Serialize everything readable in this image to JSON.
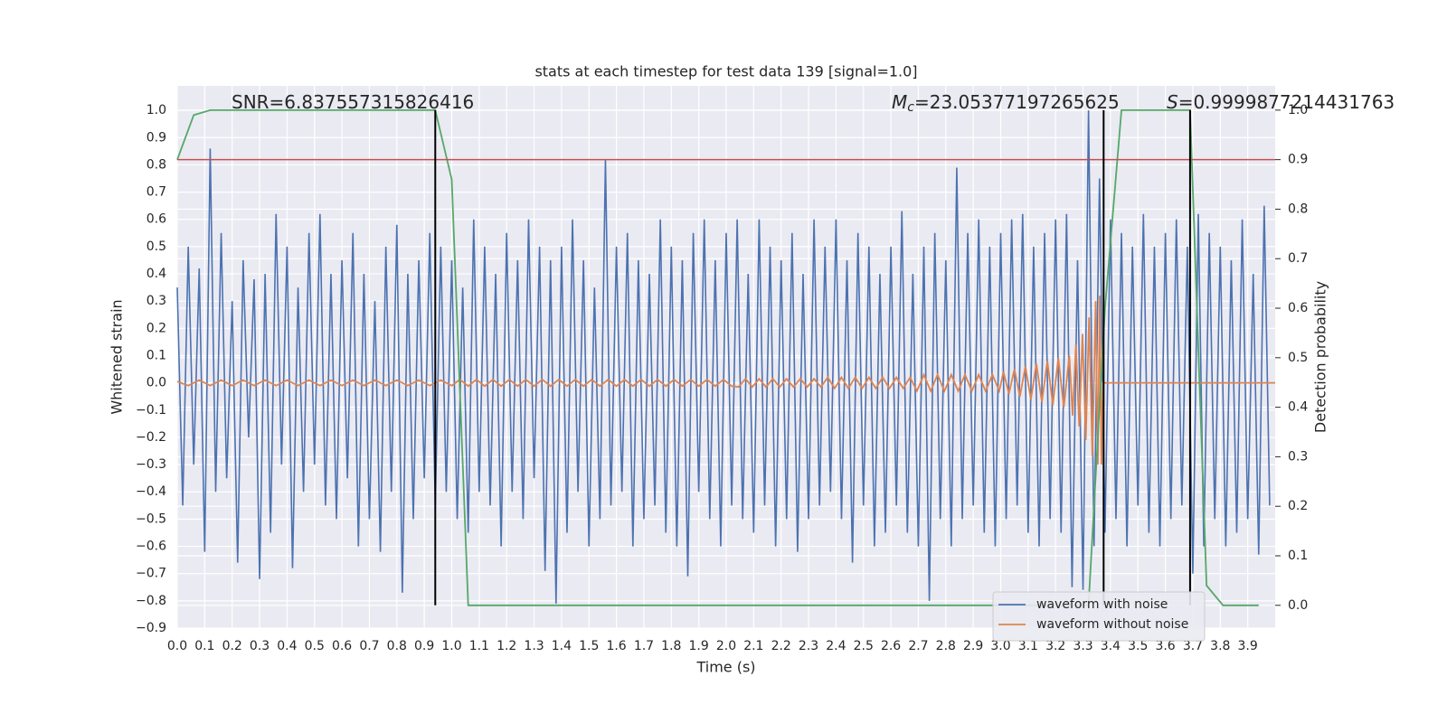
{
  "chart_data": {
    "type": "line",
    "title": "stats at each timestep for test data 139 [signal=1.0]",
    "xlabel": "Time (s)",
    "ylabel": "Whitened strain",
    "y2label": "Detection probability",
    "xlim": [
      0,
      4.0
    ],
    "ylim": [
      -0.9,
      1.09
    ],
    "y2lim": [
      -0.046,
      1.049
    ],
    "grid": true,
    "legend": "lower right",
    "xticks": [
      {
        "value": 0,
        "label": "0.0"
      },
      {
        "value": 0.1,
        "label": "0.1"
      },
      {
        "value": 0.2,
        "label": "0.2"
      },
      {
        "value": 0.3,
        "label": "0.3"
      },
      {
        "value": 0.4,
        "label": "0.4"
      },
      {
        "value": 0.5,
        "label": "0.5"
      },
      {
        "value": 0.6,
        "label": "0.6"
      },
      {
        "value": 0.7,
        "label": "0.7"
      },
      {
        "value": 0.8,
        "label": "0.8"
      },
      {
        "value": 0.9,
        "label": "0.9"
      },
      {
        "value": 1,
        "label": "1.0"
      },
      {
        "value": 1.1,
        "label": "1.1"
      },
      {
        "value": 1.2,
        "label": "1.2"
      },
      {
        "value": 1.3,
        "label": "1.3"
      },
      {
        "value": 1.4,
        "label": "1.4"
      },
      {
        "value": 1.5,
        "label": "1.5"
      },
      {
        "value": 1.6,
        "label": "1.6"
      },
      {
        "value": 1.7,
        "label": "1.7"
      },
      {
        "value": 1.8,
        "label": "1.8"
      },
      {
        "value": 1.9,
        "label": "1.9"
      },
      {
        "value": 2,
        "label": "2.0"
      },
      {
        "value": 2.1,
        "label": "2.1"
      },
      {
        "value": 2.2,
        "label": "2.2"
      },
      {
        "value": 2.3,
        "label": "2.3"
      },
      {
        "value": 2.4,
        "label": "2.4"
      },
      {
        "value": 2.5,
        "label": "2.5"
      },
      {
        "value": 2.6,
        "label": "2.6"
      },
      {
        "value": 2.7,
        "label": "2.7"
      },
      {
        "value": 2.8,
        "label": "2.8"
      },
      {
        "value": 2.9,
        "label": "2.9"
      },
      {
        "value": 3,
        "label": "3.0"
      },
      {
        "value": 3.1,
        "label": "3.1"
      },
      {
        "value": 3.2,
        "label": "3.2"
      },
      {
        "value": 3.3,
        "label": "3.3"
      },
      {
        "value": 3.4,
        "label": "3.4"
      },
      {
        "value": 3.5,
        "label": "3.5"
      },
      {
        "value": 3.6,
        "label": "3.6"
      },
      {
        "value": 3.7,
        "label": "3.7"
      },
      {
        "value": 3.8,
        "label": "3.8"
      },
      {
        "value": 3.9,
        "label": "3.9"
      }
    ],
    "yticks": [
      {
        "value": -0.9,
        "label": "−0.9"
      },
      {
        "value": -0.8,
        "label": "−0.8"
      },
      {
        "value": -0.7,
        "label": "−0.7"
      },
      {
        "value": -0.6,
        "label": "−0.6"
      },
      {
        "value": -0.5,
        "label": "−0.5"
      },
      {
        "value": -0.4,
        "label": "−0.4"
      },
      {
        "value": -0.3,
        "label": "−0.3"
      },
      {
        "value": -0.2,
        "label": "−0.2"
      },
      {
        "value": -0.1,
        "label": "−0.1"
      },
      {
        "value": 0,
        "label": "0.0"
      },
      {
        "value": 0.1,
        "label": "0.1"
      },
      {
        "value": 0.2,
        "label": "0.2"
      },
      {
        "value": 0.3,
        "label": "0.3"
      },
      {
        "value": 0.4,
        "label": "0.4"
      },
      {
        "value": 0.5,
        "label": "0.5"
      },
      {
        "value": 0.6,
        "label": "0.6"
      },
      {
        "value": 0.7,
        "label": "0.7"
      },
      {
        "value": 0.8,
        "label": "0.8"
      },
      {
        "value": 0.9,
        "label": "0.9"
      },
      {
        "value": 1,
        "label": "1.0"
      }
    ],
    "y2ticks": [
      {
        "value": 0,
        "label": "0.0"
      },
      {
        "value": 0.1,
        "label": "0.1"
      },
      {
        "value": 0.2,
        "label": "0.2"
      },
      {
        "value": 0.3,
        "label": "0.3"
      },
      {
        "value": 0.4,
        "label": "0.4"
      },
      {
        "value": 0.5,
        "label": "0.5"
      },
      {
        "value": 0.6,
        "label": "0.6"
      },
      {
        "value": 0.7,
        "label": "0.7"
      },
      {
        "value": 0.8,
        "label": "0.8"
      },
      {
        "value": 0.9,
        "label": "0.9"
      },
      {
        "value": 1,
        "label": "1.0"
      }
    ],
    "series": [
      {
        "name": "waveform with noise",
        "color": "#4c72b0",
        "x": [
          0,
          0.02,
          0.04,
          0.06,
          0.08,
          0.1,
          0.12,
          0.14,
          0.16,
          0.18,
          0.2,
          0.22,
          0.24,
          0.26,
          0.28,
          0.3,
          0.32,
          0.34,
          0.36,
          0.38,
          0.4,
          0.42,
          0.44,
          0.46,
          0.48,
          0.5,
          0.52,
          0.54,
          0.56,
          0.58,
          0.6,
          0.62,
          0.64,
          0.66,
          0.68,
          0.7,
          0.72,
          0.74,
          0.76,
          0.78,
          0.8,
          0.82,
          0.84,
          0.86,
          0.88,
          0.9,
          0.92,
          0.94,
          0.96,
          0.98,
          1,
          1.02,
          1.04,
          1.06,
          1.08,
          1.1,
          1.12,
          1.14,
          1.16,
          1.18,
          1.2,
          1.22,
          1.24,
          1.26,
          1.28,
          1.3,
          1.32,
          1.34,
          1.36,
          1.38,
          1.4,
          1.42,
          1.44,
          1.46,
          1.48,
          1.5,
          1.52,
          1.54,
          1.56,
          1.58,
          1.6,
          1.62,
          1.64,
          1.66,
          1.68,
          1.7,
          1.72,
          1.74,
          1.76,
          1.78,
          1.8,
          1.82,
          1.84,
          1.86,
          1.88,
          1.9,
          1.92,
          1.94,
          1.96,
          1.98,
          2,
          2.02,
          2.04,
          2.06,
          2.08,
          2.1,
          2.12,
          2.14,
          2.16,
          2.18,
          2.2,
          2.22,
          2.24,
          2.26,
          2.28,
          2.3,
          2.32,
          2.34,
          2.36,
          2.38,
          2.4,
          2.42,
          2.44,
          2.46,
          2.48,
          2.5,
          2.52,
          2.54,
          2.56,
          2.58,
          2.6,
          2.62,
          2.64,
          2.66,
          2.68,
          2.7,
          2.72,
          2.74,
          2.76,
          2.78,
          2.8,
          2.82,
          2.84,
          2.86,
          2.88,
          2.9,
          2.92,
          2.94,
          2.96,
          2.98,
          3,
          3.02,
          3.04,
          3.06,
          3.08,
          3.1,
          3.12,
          3.14,
          3.16,
          3.18,
          3.2,
          3.22,
          3.24,
          3.26,
          3.28,
          3.3,
          3.32,
          3.34,
          3.36,
          3.38,
          3.4,
          3.42,
          3.44,
          3.46,
          3.48,
          3.5,
          3.52,
          3.54,
          3.56,
          3.58,
          3.6,
          3.62,
          3.64,
          3.66,
          3.68,
          3.7,
          3.72,
          3.74,
          3.76,
          3.78,
          3.8,
          3.82,
          3.84,
          3.86,
          3.88,
          3.9,
          3.92,
          3.94,
          3.96,
          3.98
        ],
        "values": [
          0.35,
          -0.45,
          0.5,
          -0.3,
          0.42,
          -0.62,
          0.86,
          -0.4,
          0.55,
          -0.35,
          0.3,
          -0.66,
          0.45,
          -0.2,
          0.38,
          -0.72,
          0.4,
          -0.55,
          0.62,
          -0.3,
          0.5,
          -0.68,
          0.35,
          -0.4,
          0.55,
          -0.3,
          0.62,
          -0.45,
          0.4,
          -0.5,
          0.45,
          -0.35,
          0.55,
          -0.6,
          0.4,
          -0.5,
          0.3,
          -0.62,
          0.5,
          -0.4,
          0.58,
          -0.77,
          0.4,
          -0.5,
          0.45,
          -0.35,
          0.55,
          -0.45,
          0.5,
          -0.4,
          0.45,
          -0.5,
          0.35,
          -0.55,
          0.6,
          -0.4,
          0.5,
          -0.45,
          0.4,
          -0.6,
          0.55,
          -0.4,
          0.45,
          -0.5,
          0.6,
          -0.35,
          0.5,
          -0.69,
          0.45,
          -0.81,
          0.5,
          -0.55,
          0.6,
          -0.4,
          0.45,
          -0.6,
          0.35,
          -0.5,
          0.82,
          -0.45,
          0.5,
          -0.4,
          0.55,
          -0.6,
          0.45,
          -0.5,
          0.4,
          -0.45,
          0.6,
          -0.55,
          0.5,
          -0.6,
          0.45,
          -0.71,
          0.55,
          -0.4,
          0.6,
          -0.5,
          0.45,
          -0.6,
          0.55,
          -0.45,
          0.6,
          -0.5,
          0.4,
          -0.55,
          0.6,
          -0.45,
          0.5,
          -0.6,
          0.45,
          -0.5,
          0.55,
          -0.62,
          0.4,
          -0.5,
          0.6,
          -0.45,
          0.5,
          -0.4,
          0.6,
          -0.5,
          0.45,
          -0.66,
          0.55,
          -0.45,
          0.5,
          -0.6,
          0.4,
          -0.55,
          0.5,
          -0.45,
          0.63,
          -0.55,
          0.4,
          -0.6,
          0.5,
          -0.8,
          0.55,
          -0.5,
          0.45,
          -0.6,
          0.79,
          -0.5,
          0.55,
          -0.45,
          0.6,
          -0.55,
          0.5,
          -0.6,
          0.55,
          -0.5,
          0.6,
          -0.45,
          0.62,
          -0.55,
          0.5,
          -0.6,
          0.55,
          -0.5,
          0.6,
          -0.55,
          0.62,
          -0.75,
          0.45,
          -0.76,
          1.0,
          -0.6,
          0.75,
          -0.55,
          0.6,
          -0.5,
          0.55,
          -0.6,
          0.5,
          -0.45,
          0.62,
          -0.55,
          0.5,
          -0.6,
          0.55,
          -0.5,
          0.6,
          -0.45,
          0.5,
          -0.7,
          0.62,
          -0.6,
          0.55,
          -0.5,
          0.5,
          -0.6,
          0.45,
          -0.55,
          0.6,
          -0.5,
          0.4,
          -0.63,
          0.65,
          -0.45
        ]
      },
      {
        "name": "waveform without noise",
        "color": "#dd8452",
        "x": [
          0,
          0.04,
          0.08,
          0.12,
          0.16,
          0.2,
          0.24,
          0.28,
          0.32,
          0.36,
          0.4,
          0.44,
          0.48,
          0.52,
          0.56,
          0.6,
          0.64,
          0.68,
          0.72,
          0.76,
          0.8,
          0.84,
          0.88,
          0.92,
          0.96,
          1.0,
          1.03,
          1.06,
          1.09,
          1.12,
          1.15,
          1.18,
          1.21,
          1.24,
          1.27,
          1.3,
          1.33,
          1.36,
          1.39,
          1.42,
          1.45,
          1.48,
          1.51,
          1.54,
          1.57,
          1.6,
          1.63,
          1.66,
          1.69,
          1.72,
          1.75,
          1.78,
          1.81,
          1.84,
          1.87,
          1.9,
          1.93,
          1.96,
          1.99,
          2.02,
          2.045,
          2.07,
          2.095,
          2.12,
          2.145,
          2.17,
          2.195,
          2.22,
          2.245,
          2.27,
          2.295,
          2.32,
          2.345,
          2.37,
          2.395,
          2.42,
          2.445,
          2.47,
          2.495,
          2.52,
          2.545,
          2.57,
          2.595,
          2.62,
          2.645,
          2.67,
          2.695,
          2.72,
          2.745,
          2.77,
          2.795,
          2.82,
          2.845,
          2.87,
          2.895,
          2.92,
          2.945,
          2.97,
          2.995,
          3.01,
          3.03,
          3.05,
          3.07,
          3.09,
          3.11,
          3.13,
          3.15,
          3.17,
          3.19,
          3.21,
          3.23,
          3.25,
          3.262,
          3.274,
          3.286,
          3.298,
          3.31,
          3.322,
          3.334,
          3.346,
          3.354,
          3.361,
          3.367,
          3.372,
          4.0
        ],
        "values": [
          0.005,
          -0.01,
          0.01,
          -0.01,
          0.01,
          -0.01,
          0.01,
          -0.01,
          0.01,
          -0.01,
          0.01,
          -0.01,
          0.01,
          -0.01,
          0.01,
          -0.01,
          0.01,
          -0.01,
          0.01,
          -0.01,
          0.01,
          -0.01,
          0.01,
          -0.01,
          0.01,
          -0.01,
          0.012,
          -0.012,
          0.012,
          -0.012,
          0.012,
          -0.012,
          0.012,
          -0.012,
          0.012,
          -0.012,
          0.012,
          -0.012,
          0.012,
          -0.012,
          0.012,
          -0.012,
          0.012,
          -0.012,
          0.012,
          -0.012,
          0.012,
          -0.012,
          0.012,
          -0.012,
          0.012,
          -0.012,
          0.012,
          -0.012,
          0.012,
          -0.012,
          0.012,
          -0.012,
          0.012,
          -0.012,
          -0.015,
          0.015,
          -0.015,
          0.015,
          -0.015,
          0.015,
          -0.015,
          0.015,
          -0.015,
          0.015,
          -0.015,
          0.015,
          -0.015,
          0.02,
          -0.02,
          0.02,
          -0.02,
          0.02,
          -0.02,
          0.02,
          -0.02,
          0.02,
          -0.02,
          0.02,
          -0.02,
          0.02,
          -0.03,
          0.03,
          -0.03,
          0.03,
          -0.03,
          0.03,
          -0.03,
          0.03,
          -0.03,
          0.03,
          -0.03,
          0.03,
          -0.03,
          0.04,
          -0.04,
          0.05,
          -0.05,
          0.06,
          -0.06,
          0.07,
          -0.07,
          0.08,
          -0.08,
          0.09,
          -0.09,
          0.1,
          -0.12,
          0.14,
          -0.16,
          0.18,
          -0.21,
          0.24,
          -0.27,
          0.3,
          -0.3,
          0.32,
          -0.3,
          0,
          0
        ]
      },
      {
        "color": "#55a868",
        "axis": "y2",
        "x": [
          0,
          0.06,
          0.12,
          0.94,
          1.0,
          1.06,
          3.32,
          3.38,
          3.44,
          3.69,
          3.75,
          3.81,
          3.94
        ],
        "values": [
          0.9,
          0.99,
          1.0,
          1.0,
          0.86,
          0.0,
          0.0,
          0.6,
          1.0,
          1.0,
          0.04,
          0.0,
          0.0
        ]
      }
    ],
    "threshold": {
      "value": 0.9,
      "axis": "y2",
      "color": "#c44e52"
    },
    "vlines": {
      "x": [
        0.94,
        3.375,
        3.69
      ],
      "y2range": [
        0,
        1
      ],
      "color": "#000000"
    },
    "annotations": [
      {
        "text": "SNR=6.837557315826416"
      },
      {
        "symbol": "M",
        "subscript": "c",
        "text": "=23.05377197265625"
      },
      {
        "symbol": "S",
        "text": "=0.9999877214431763"
      }
    ]
  }
}
